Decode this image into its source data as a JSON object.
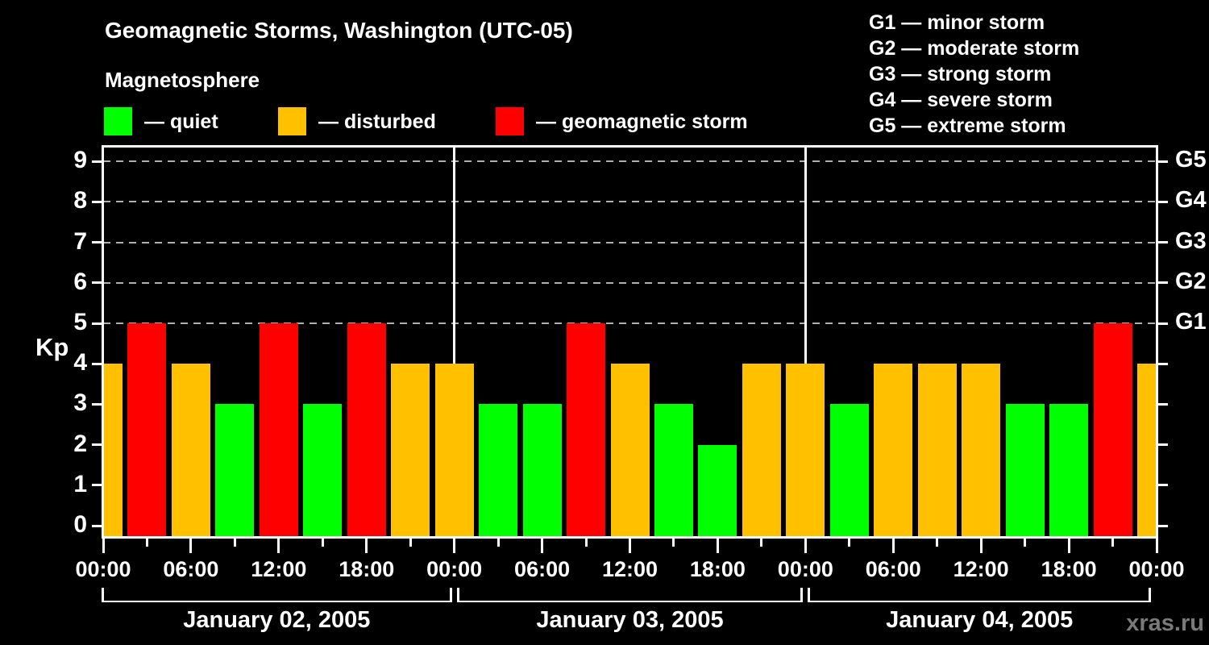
{
  "header": {
    "title": "Geomagnetic Storms, Washington (UTC-05)",
    "subtitle": "Magnetosphere"
  },
  "legend": {
    "items": [
      {
        "name": "quiet",
        "label": "— quiet",
        "color": "#00ff00"
      },
      {
        "name": "disturbed",
        "label": "— disturbed",
        "color": "#ffc000"
      },
      {
        "name": "storm",
        "label": "— geomagnetic storm",
        "color": "#ff0000"
      }
    ]
  },
  "g_scale_legend": {
    "lines": [
      "G1 — minor storm",
      "G2 — moderate storm",
      "G3 — strong storm",
      "G4 — severe storm",
      "G5 — extreme storm"
    ]
  },
  "watermark": "xras.ru",
  "chart_data": {
    "type": "bar",
    "title": "Geomagnetic Storms, Washington (UTC-05)",
    "y_axis_label": "Kp",
    "ylim": [
      0,
      9.4
    ],
    "y_ticks": [
      0,
      1,
      2,
      3,
      4,
      5,
      6,
      7,
      8,
      9
    ],
    "gridlines_kp": [
      5,
      6,
      7,
      8,
      9
    ],
    "right_axis_labels": [
      {
        "kp": 5,
        "label": "G1"
      },
      {
        "kp": 6,
        "label": "G2"
      },
      {
        "kp": 7,
        "label": "G3"
      },
      {
        "kp": 8,
        "label": "G4"
      },
      {
        "kp": 9,
        "label": "G5"
      }
    ],
    "hours_total": 72,
    "hours_per_bar": 3,
    "x_major_tick_labels": [
      "00:00",
      "06:00",
      "12:00",
      "18:00",
      "00:00",
      "06:00",
      "12:00",
      "18:00",
      "00:00",
      "06:00",
      "12:00",
      "18:00",
      "00:00"
    ],
    "x_minor_tick_hours": [
      3,
      9,
      15,
      21,
      27,
      33,
      39,
      45,
      51,
      57,
      63,
      69
    ],
    "days": [
      {
        "label": "January 02, 2005",
        "start_hour": 0,
        "end_hour": 24
      },
      {
        "label": "January 03, 2005",
        "start_hour": 24,
        "end_hour": 48
      },
      {
        "label": "January 04, 2005",
        "start_hour": 48,
        "end_hour": 72
      }
    ],
    "status_colors": {
      "quiet": "#00ff00",
      "disturbed": "#ffc000",
      "storm": "#ff0000"
    },
    "bars": [
      {
        "hour": 0,
        "kp": 4,
        "status": "disturbed"
      },
      {
        "hour": 3,
        "kp": 5,
        "status": "storm"
      },
      {
        "hour": 6,
        "kp": 4,
        "status": "disturbed"
      },
      {
        "hour": 9,
        "kp": 3,
        "status": "quiet"
      },
      {
        "hour": 12,
        "kp": 5,
        "status": "storm"
      },
      {
        "hour": 15,
        "kp": 3,
        "status": "quiet"
      },
      {
        "hour": 18,
        "kp": 5,
        "status": "storm"
      },
      {
        "hour": 21,
        "kp": 4,
        "status": "disturbed"
      },
      {
        "hour": 24,
        "kp": 4,
        "status": "disturbed"
      },
      {
        "hour": 27,
        "kp": 3,
        "status": "quiet"
      },
      {
        "hour": 30,
        "kp": 3,
        "status": "quiet"
      },
      {
        "hour": 33,
        "kp": 5,
        "status": "storm"
      },
      {
        "hour": 36,
        "kp": 4,
        "status": "disturbed"
      },
      {
        "hour": 39,
        "kp": 3,
        "status": "quiet"
      },
      {
        "hour": 42,
        "kp": 2,
        "status": "quiet"
      },
      {
        "hour": 45,
        "kp": 4,
        "status": "disturbed"
      },
      {
        "hour": 48,
        "kp": 4,
        "status": "disturbed"
      },
      {
        "hour": 51,
        "kp": 3,
        "status": "quiet"
      },
      {
        "hour": 54,
        "kp": 4,
        "status": "disturbed"
      },
      {
        "hour": 57,
        "kp": 4,
        "status": "disturbed"
      },
      {
        "hour": 60,
        "kp": 4,
        "status": "disturbed"
      },
      {
        "hour": 63,
        "kp": 3,
        "status": "quiet"
      },
      {
        "hour": 66,
        "kp": 3,
        "status": "quiet"
      },
      {
        "hour": 69,
        "kp": 5,
        "status": "storm"
      },
      {
        "hour": 72,
        "kp": 4,
        "status": "disturbed"
      }
    ]
  }
}
